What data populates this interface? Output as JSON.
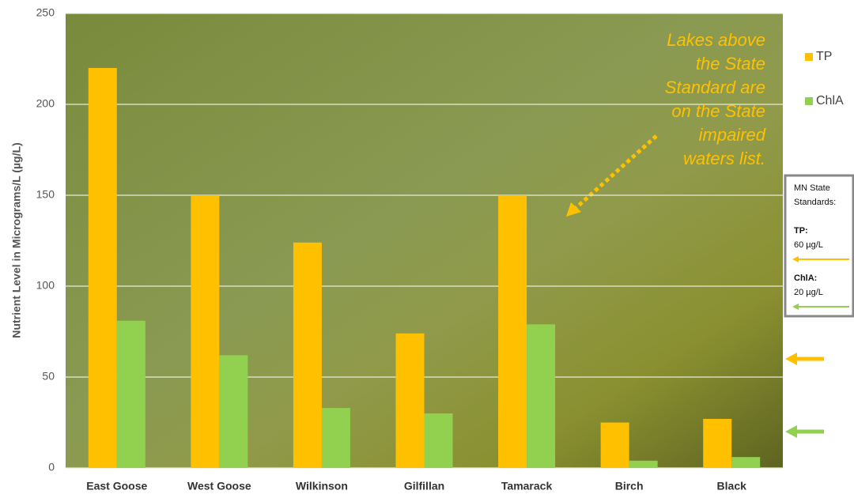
{
  "chart_data": {
    "type": "bar",
    "y_label": "Nutrient Level in Micrograms/L (µg/L)",
    "categories": [
      "East Goose",
      "West Goose",
      "Wilkinson",
      "Gilfillan",
      "Tamarack",
      "Birch",
      "Black"
    ],
    "series": [
      {
        "name": "TP",
        "color": "#ffc000",
        "values": [
          220,
          150,
          124,
          74,
          150,
          25,
          27
        ]
      },
      {
        "name": "ChlA",
        "color": "#92d050",
        "values": [
          81,
          62,
          33,
          30,
          79,
          4,
          6
        ]
      }
    ],
    "ylim": [
      0,
      250
    ],
    "yticks": [
      0,
      50,
      100,
      150,
      200,
      250
    ],
    "grid": true,
    "annotation": [
      "Lakes above",
      "the State",
      "Standard are",
      "on the State",
      "impaired",
      "waters list."
    ],
    "standards_title": [
      "MN State",
      "Standards:"
    ],
    "standards": [
      {
        "name": "TP:",
        "value": 60,
        "label": "60 µg/L",
        "color": "#ffc000"
      },
      {
        "name": "ChlA:",
        "value": 20,
        "label": "20 µg/L",
        "color": "#92d050"
      }
    ]
  }
}
